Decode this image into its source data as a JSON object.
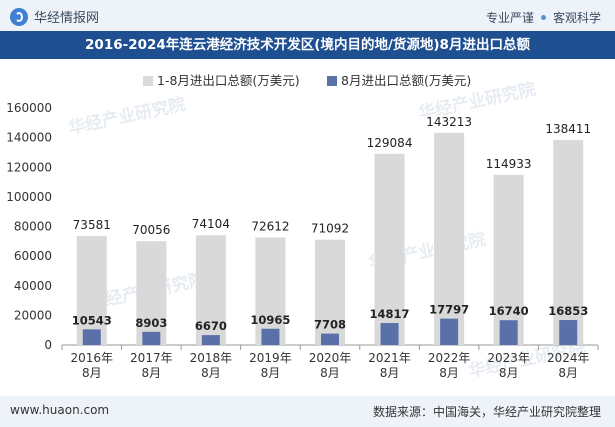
{
  "header": {
    "brand": "华经情报网",
    "slogan_1": "专业严谨",
    "slogan_2": "客观科学",
    "logo_icon": "huajing-logo-icon"
  },
  "title": "2016-2024年连云港经济技术开发区(境内目的地/货源地)8月进出口总额",
  "watermark": "华经产业研究院",
  "footer": {
    "site": "www.huaon.com",
    "source": "数据来源：中国海关，华经产业研究院整理"
  },
  "colors": {
    "series_1": "#d9d9d9",
    "series_2": "#5a70a8",
    "header_bg": "#eef3f9",
    "title_bg": "#1e4f91"
  },
  "chart_data": {
    "type": "bar",
    "categories": [
      "2016年\n8月",
      "2017年\n8月",
      "2018年\n8月",
      "2019年\n8月",
      "2020年\n8月",
      "2021年\n8月",
      "2022年\n8月",
      "2023年\n8月",
      "2024年\n8月"
    ],
    "series": [
      {
        "name": "1-8月进出口总额(万美元)",
        "values": [
          73581,
          70056,
          74104,
          72612,
          71092,
          129084,
          143213,
          114933,
          138411
        ]
      },
      {
        "name": "8月进出口总额(万美元)",
        "values": [
          10543,
          8903,
          6670,
          10965,
          7708,
          14817,
          17797,
          16740,
          16853
        ]
      }
    ],
    "ylim": [
      0,
      160000
    ],
    "yticks": [
      0,
      20000,
      40000,
      60000,
      80000,
      100000,
      120000,
      140000,
      160000
    ],
    "grid": false,
    "legend": "top-center",
    "bar_style": "overlapping"
  }
}
